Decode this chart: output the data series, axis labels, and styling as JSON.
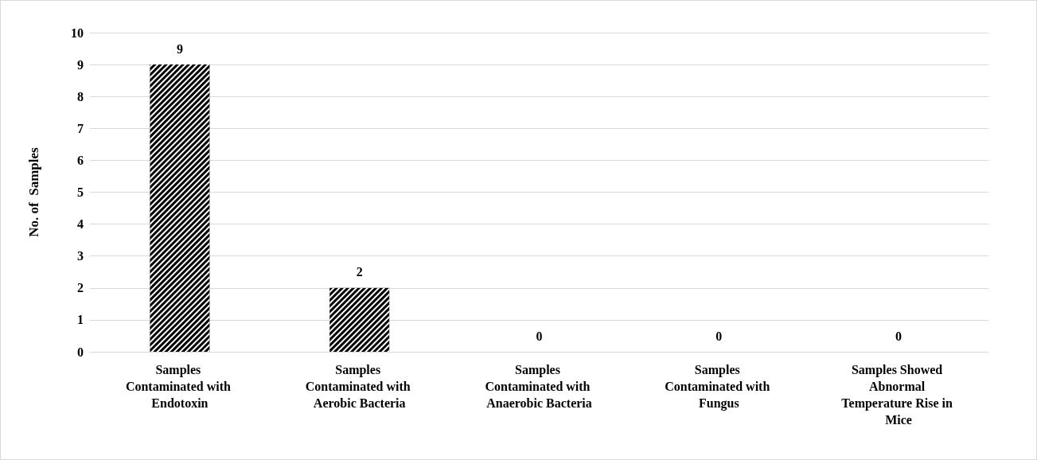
{
  "chart_data": {
    "type": "bar",
    "ylabel": "No. of  Samples",
    "categories": [
      "Samples Contaminated with Endotoxin",
      "Samples Contaminated with Aerobic Bacteria",
      "Samples Contaminated with Anaerobic Bacteria",
      "Samples Contaminated with Fungus",
      "Samples Showed Abnormal Temperature Rise in Mice"
    ],
    "values": [
      9,
      2,
      0,
      0,
      0
    ],
    "color": "#000000",
    "ylim": [
      0,
      10
    ],
    "yticks": [
      0,
      1,
      2,
      3,
      4,
      5,
      6,
      7,
      8,
      9,
      10
    ],
    "grid": "y",
    "data_labels": true
  }
}
